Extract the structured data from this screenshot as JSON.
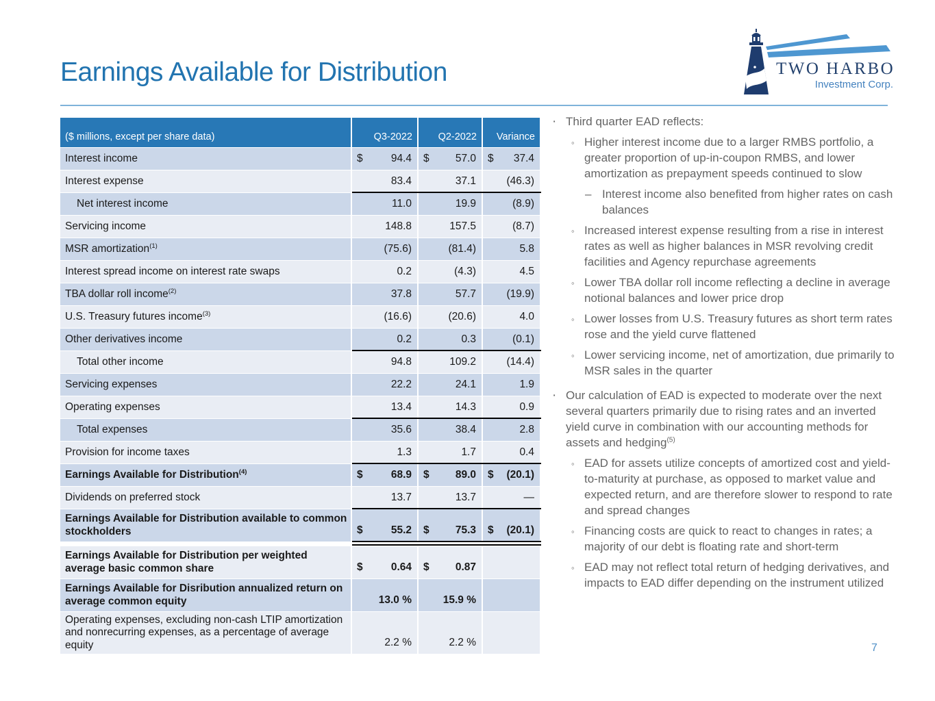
{
  "title": "Earnings Available for Distribution",
  "page_number": "7",
  "logo": {
    "icon": "lighthouse-icon",
    "company": "TWO HARBORS",
    "subtitle": "Investment Corp."
  },
  "colors": {
    "accent_blue": "#2274B0",
    "header_blue": "#2878B6",
    "row_dark": "#CBD7E9",
    "row_light": "#E9EDF4",
    "note_gray": "#646464",
    "navy": "#1E3C6E",
    "beam_blue": "#4E97D1",
    "rule_blue": "#7EB3DA",
    "page_num_blue": "#4E8FC7"
  },
  "bullet_markers": {
    "level1": "·",
    "level2": "◦",
    "level3": "–"
  },
  "table": {
    "header": {
      "label": "($ millions, except per share data)",
      "columns": [
        "Q3-2022",
        "Q2-2022",
        "Variance"
      ]
    },
    "rows": [
      {
        "label": "Interest income",
        "dollar": true,
        "q3": "94.4",
        "q2": "57.0",
        "var": "37.4"
      },
      {
        "label": "Interest expense",
        "q3": "83.4",
        "q2": "37.1",
        "var": "(46.3)",
        "line": "bottom"
      },
      {
        "label": "Net interest income",
        "indent": true,
        "q3": "11.0",
        "q2": "19.9",
        "var": "(8.9)"
      },
      {
        "label": "Servicing income",
        "q3": "148.8",
        "q2": "157.5",
        "var": "(8.7)"
      },
      {
        "label": "MSR amortization",
        "sup": "(1)",
        "q3": "(75.6)",
        "q2": "(81.4)",
        "var": "5.8"
      },
      {
        "label": "Interest spread income on interest rate swaps",
        "q3": "0.2",
        "q2": "(4.3)",
        "var": "4.5"
      },
      {
        "label": "TBA dollar roll income",
        "sup": "(2)",
        "q3": "37.8",
        "q2": "57.7",
        "var": "(19.9)"
      },
      {
        "label": "U.S. Treasury futures income",
        "sup": "(3)",
        "q3": "(16.6)",
        "q2": "(20.6)",
        "var": "4.0"
      },
      {
        "label": "Other derivatives income",
        "q3": "0.2",
        "q2": "0.3",
        "var": "(0.1)",
        "line": "bottom"
      },
      {
        "label": "Total other income",
        "indent": true,
        "q3": "94.8",
        "q2": "109.2",
        "var": "(14.4)"
      },
      {
        "label": "Servicing expenses",
        "q3": "22.2",
        "q2": "24.1",
        "var": "1.9"
      },
      {
        "label": "Operating expenses",
        "q3": "13.4",
        "q2": "14.3",
        "var": "0.9",
        "line": "bottom"
      },
      {
        "label": "Total expenses",
        "indent": true,
        "q3": "35.6",
        "q2": "38.4",
        "var": "2.8"
      },
      {
        "label": "Provision for income taxes",
        "q3": "1.3",
        "q2": "1.7",
        "var": "0.4",
        "line": "bottom"
      },
      {
        "label": "Earnings Available for Distribution",
        "sup": "(4)",
        "bold": true,
        "dollar": true,
        "q3": "68.9",
        "q2": "89.0",
        "var": "(20.1)"
      },
      {
        "label": "Dividends on preferred stock",
        "q3": "13.7",
        "q2": "13.7",
        "var": "—",
        "line": "bottom"
      },
      {
        "label": "Earnings Available for Distribution available to common stockholders",
        "bold": true,
        "dollar": true,
        "q3": "55.2",
        "q2": "75.3",
        "var": "(20.1)",
        "line": "double",
        "tall": 2
      },
      {
        "label": "Earnings Available for Distribution per weighted average basic common share",
        "bold": true,
        "dollar": true,
        "q3": "0.64",
        "q2": "0.87",
        "var": "",
        "tall": 2,
        "gap_before": true
      },
      {
        "label": "Earnings Available for Disribution annualized return on average common equity",
        "bold": true,
        "q3": "13.0 %",
        "q2": "15.9 %",
        "var": "",
        "tall": 2
      },
      {
        "label": "Operating expenses, excluding non-cash LTIP amortization and nonrecurring expenses, as a percentage of average equity",
        "q3": "2.2 %",
        "q2": "2.2 %",
        "var": "",
        "tall": 3
      }
    ]
  },
  "notes": {
    "items": [
      {
        "level": 1,
        "text": "Third quarter EAD reflects:"
      },
      {
        "level": 2,
        "text": "Higher interest income due to a larger RMBS portfolio, a greater proportion of up-in-coupon RMBS, and lower amortization as prepayment speeds continued to slow"
      },
      {
        "level": 3,
        "text": "Interest income also benefited from higher rates on cash balances"
      },
      {
        "level": 2,
        "text": "Increased interest expense resulting from a rise in interest rates as well as higher balances in MSR revolving credit facilities and Agency repurchase agreements"
      },
      {
        "level": 2,
        "text": "Lower TBA dollar roll income reflecting a decline in average notional balances and lower price drop"
      },
      {
        "level": 2,
        "text": "Lower losses from U.S. Treasury futures as short term rates rose and the yield curve flattened"
      },
      {
        "level": 2,
        "text": "Lower servicing income, net of amortization, due primarily to MSR sales in the quarter"
      },
      {
        "level": 1,
        "text": "Our calculation of EAD is expected to moderate over the next several quarters primarily due to rising rates and an inverted yield curve in combination with our accounting methods for assets and hedging",
        "sup": "(5)"
      },
      {
        "level": 2,
        "text": "EAD for assets utilize concepts of amortized cost and yield-to-maturity at purchase, as opposed to market value and expected return, and are therefore slower to respond to rate and spread changes"
      },
      {
        "level": 2,
        "text": "Financing costs are quick to react to changes in rates; a majority of our debt is floating rate and short-term"
      },
      {
        "level": 2,
        "text": "EAD may not reflect total return of hedging derivatives, and impacts to EAD differ depending on the instrument utilized"
      }
    ]
  }
}
